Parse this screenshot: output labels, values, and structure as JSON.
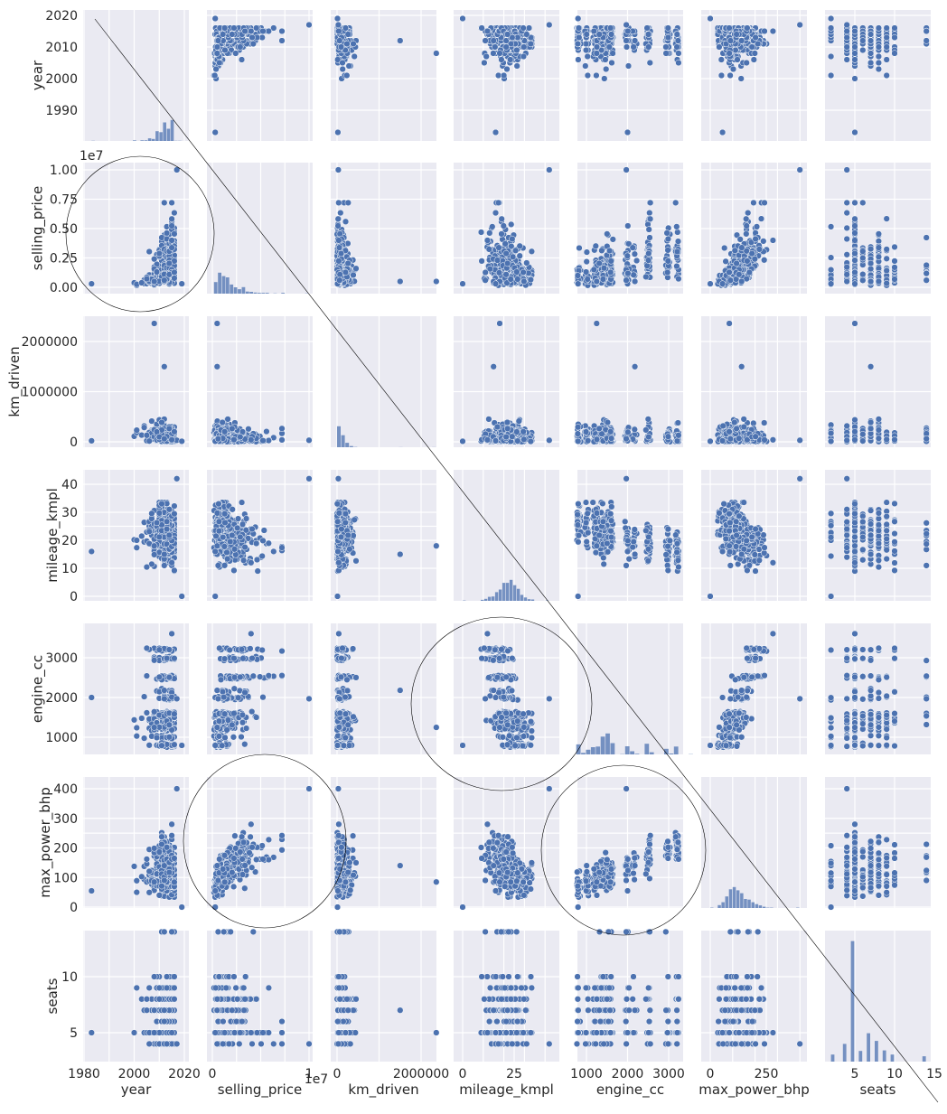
{
  "chart_data": {
    "type": "scatter",
    "kind": "pairplot",
    "title": "",
    "variables": [
      {
        "key": "year",
        "label": "year"
      },
      {
        "key": "selling_price",
        "label": "selling_price"
      },
      {
        "key": "km_driven",
        "label": "km_driven"
      },
      {
        "key": "mileage_kmpl",
        "label": "mileage_kmpl"
      },
      {
        "key": "engine_cc",
        "label": "engine_cc"
      },
      {
        "key": "max_power_bhp",
        "label": "max_power_bhp"
      },
      {
        "key": "seats",
        "label": "seats"
      }
    ],
    "x_ticks": {
      "year": [
        "1980",
        "2000",
        "2020"
      ],
      "selling_price": [
        "0",
        "1"
      ],
      "km_driven": [
        "0",
        "2000000"
      ],
      "mileage_kmpl": [
        "0",
        "25"
      ],
      "engine_cc": [
        "1000",
        "2000",
        "3000"
      ],
      "max_power_bhp": [
        "0",
        "250"
      ],
      "seats": [
        "5",
        "10",
        "15"
      ]
    },
    "y_ticks": {
      "year": [
        "2020",
        "2010",
        "2000",
        "1990"
      ],
      "selling_price": [
        "1.00",
        "0.75",
        "0.50",
        "0.25",
        "0.00"
      ],
      "km_driven": [
        "2000000",
        "1000000",
        "0"
      ],
      "mileage_kmpl": [
        "40",
        "30",
        "20",
        "10",
        "0"
      ],
      "engine_cc": [
        "3000",
        "2000",
        "1000"
      ],
      "max_power_bhp": [
        "400",
        "300",
        "200",
        "100",
        "0"
      ],
      "seats": [
        "10",
        "5"
      ]
    },
    "offset_text": {
      "selling_price": "1e7"
    },
    "diagonal": "histogram",
    "off_diagonal": "scatter",
    "point_color": "#4c72b0",
    "hist_color": "#4c72b0",
    "axis_ranges": {
      "year": [
        1981,
        2022
      ],
      "selling_price": [
        -500000,
        10500000
      ],
      "km_driven": [
        -120000,
        2480000
      ],
      "mileage_kmpl": [
        -2,
        44
      ],
      "engine_cc": [
        470,
        3780
      ],
      "max_power_bhp": [
        -20,
        430
      ],
      "seats": [
        1.2,
        14.8
      ]
    },
    "grid": true,
    "background": "#eaeaf2",
    "legend": "none",
    "annotations": [
      "diagonal-line",
      "circle-year-vs-selling_price",
      "circle-mileage_kmpl-vs-engine_cc",
      "circle-selling_price-vs-max_power_bhp",
      "circle-engine_cc-vs-max_power_bhp"
    ]
  }
}
